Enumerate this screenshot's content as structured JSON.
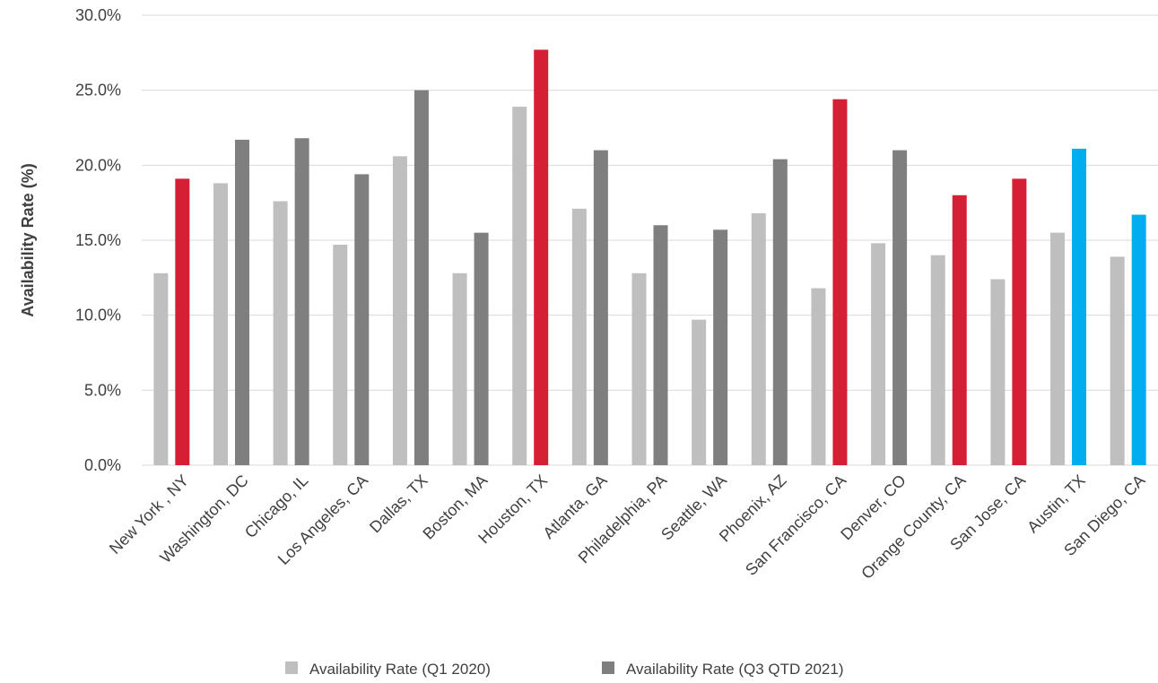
{
  "chart_data": {
    "type": "bar",
    "title": "",
    "xlabel": "",
    "ylabel": "Availability Rate (%)",
    "ylim": [
      0,
      30
    ],
    "yticks": [
      "0.0%",
      "5.0%",
      "10.0%",
      "15.0%",
      "20.0%",
      "25.0%",
      "30.0%"
    ],
    "grid": true,
    "legend_position": "bottom",
    "categories": [
      "New York , NY",
      "Washington, DC",
      "Chicago, IL",
      "Los Angeles, CA",
      "Dallas, TX",
      "Boston, MA",
      "Houston, TX",
      "Atlanta, GA",
      "Philadelphia, PA",
      "Seattle, WA",
      "Phoenix, AZ",
      "San Francisco, CA",
      "Denver, CO",
      "Orange County, CA",
      "San Jose, CA",
      "Austin, TX",
      "San Diego, CA"
    ],
    "series": [
      {
        "name": "Availability Rate (Q1 2020)",
        "color": "#bfbfbf",
        "values": [
          12.8,
          18.8,
          17.6,
          14.7,
          20.6,
          12.8,
          23.9,
          17.1,
          12.8,
          9.7,
          16.8,
          11.8,
          14.8,
          14.0,
          12.4,
          15.5,
          13.9
        ]
      },
      {
        "name": "Availability Rate (Q3 QTD 2021)",
        "color": "#7f7f7f",
        "values": [
          19.1,
          21.7,
          21.8,
          19.4,
          25.0,
          15.5,
          27.7,
          21.0,
          16.0,
          15.7,
          20.4,
          24.4,
          21.0,
          18.0,
          19.1,
          21.1,
          16.7
        ],
        "point_colors": [
          "#d51f35",
          "#7f7f7f",
          "#7f7f7f",
          "#7f7f7f",
          "#7f7f7f",
          "#7f7f7f",
          "#d51f35",
          "#7f7f7f",
          "#7f7f7f",
          "#7f7f7f",
          "#7f7f7f",
          "#d51f35",
          "#7f7f7f",
          "#d51f35",
          "#d51f35",
          "#00aeef",
          "#00aeef"
        ]
      }
    ]
  }
}
